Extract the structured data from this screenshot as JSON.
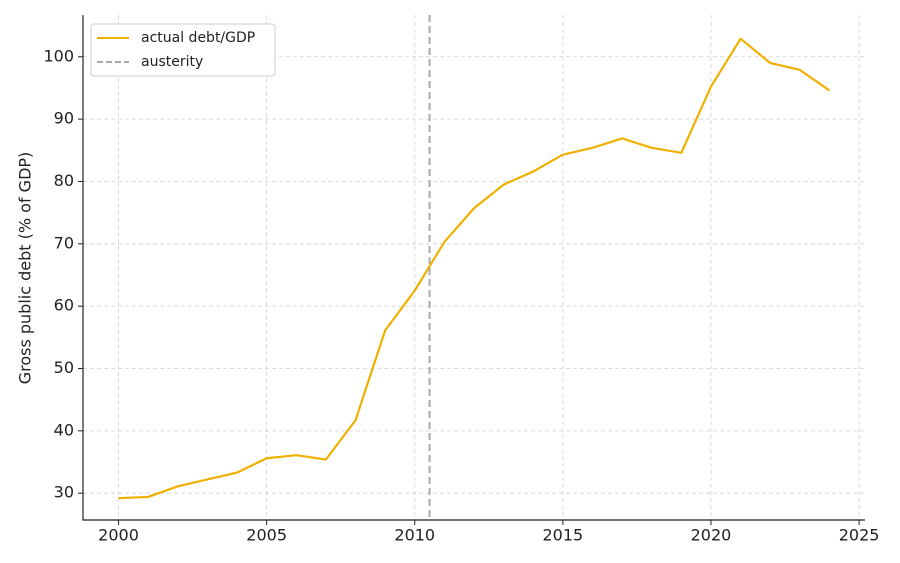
{
  "chart_data": {
    "type": "line",
    "y_label": "Gross public debt (% of GDP)",
    "x": [
      2000,
      2001,
      2002,
      2003,
      2004,
      2005,
      2006,
      2007,
      2008,
      2009,
      2010,
      2011,
      2012,
      2013,
      2014,
      2015,
      2016,
      2017,
      2018,
      2019,
      2020,
      2021,
      2022,
      2023,
      2024
    ],
    "series": [
      {
        "name": "actual debt/GDP",
        "color": "#f0b000",
        "values": [
          29.2,
          29.4,
          31.1,
          32.2,
          33.3,
          35.6,
          36.1,
          35.4,
          41.7,
          56.1,
          62.5,
          70.3,
          75.7,
          79.5,
          81.6,
          84.3,
          85.4,
          86.9,
          85.4,
          84.6,
          95.2,
          102.9,
          99.0,
          97.9,
          94.6
        ]
      }
    ],
    "vline": {
      "name": "austerity",
      "x": 2010.5,
      "color": "#aaaaaa"
    },
    "xlim": [
      1998.8,
      2025.2
    ],
    "xticks": [
      2000,
      2005,
      2010,
      2015,
      2020,
      2025
    ],
    "ylim": [
      25.7,
      106.7
    ],
    "yticks": [
      30,
      40,
      50,
      60,
      70,
      80,
      90,
      100
    ],
    "grid": true,
    "legend": "upper left"
  }
}
